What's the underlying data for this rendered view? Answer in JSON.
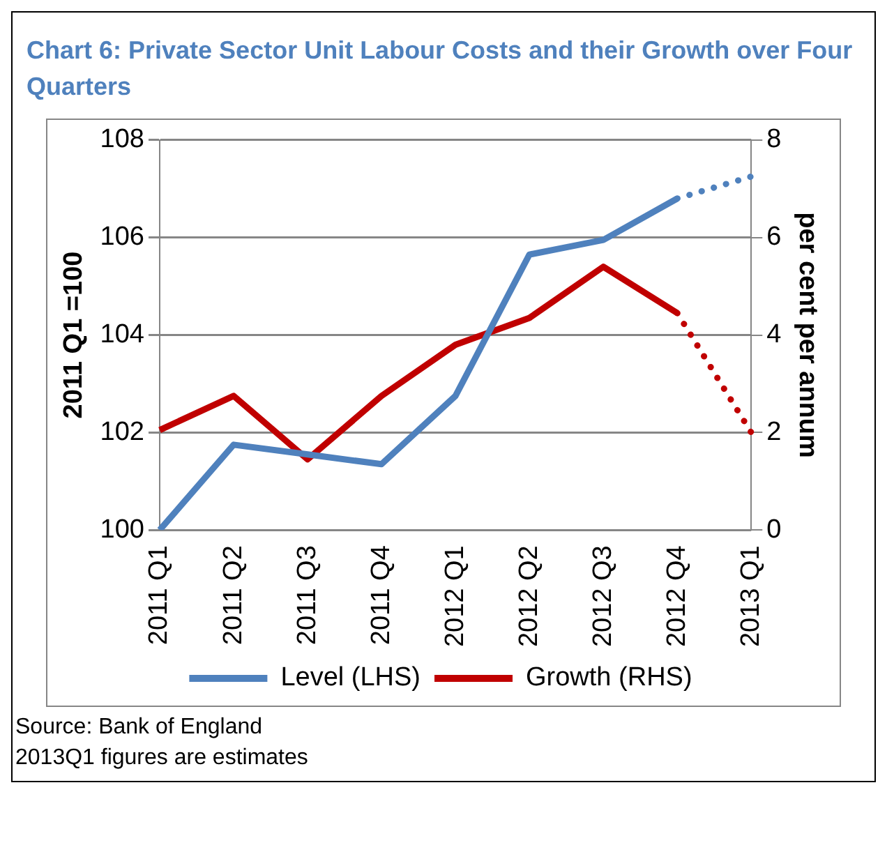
{
  "chart_data": {
    "type": "line",
    "title": "Chart 6: Private Sector Unit Labour Costs and their Growth over Four Quarters",
    "ylabel": "2011 Q1 =100",
    "y2label": "per cent per annum",
    "categories": [
      "2011 Q1",
      "2011 Q2",
      "2011 Q3",
      "2011 Q4",
      "2012 Q1",
      "2012 Q2",
      "2012 Q3",
      "2012 Q4",
      "2013 Q1"
    ],
    "series": [
      {
        "name": "Level (LHS)",
        "color": "#4f81bd",
        "axis": "y",
        "line_style": "solid",
        "values": [
          100,
          101.75,
          101.55,
          101.35,
          102.75,
          105.65,
          105.95,
          106.8,
          null
        ]
      },
      {
        "name": "Growth (RHS)",
        "color": "#c00000",
        "axis": "y2",
        "line_style": "solid",
        "values": [
          2.05,
          2.75,
          1.45,
          2.75,
          3.8,
          4.35,
          5.4,
          4.45,
          null
        ]
      },
      {
        "color": "#4f81bd",
        "axis": "y",
        "line_style": "dotted",
        "values": [
          null,
          null,
          null,
          null,
          null,
          null,
          null,
          106.8,
          107.25
        ]
      },
      {
        "color": "#c00000",
        "axis": "y2",
        "line_style": "dotted",
        "values": [
          null,
          null,
          null,
          null,
          null,
          null,
          null,
          4.45,
          2.0
        ]
      }
    ],
    "ylim": [
      100,
      108
    ],
    "yticks": [
      100,
      102,
      104,
      106,
      108
    ],
    "y2lim": [
      0,
      8
    ],
    "y2ticks": [
      0,
      2,
      4,
      6,
      8
    ],
    "grid": "y",
    "legend": "bottom",
    "marker": "none",
    "annotations": [
      "Source: Bank of England",
      "2013Q1 figures are estimates"
    ]
  }
}
